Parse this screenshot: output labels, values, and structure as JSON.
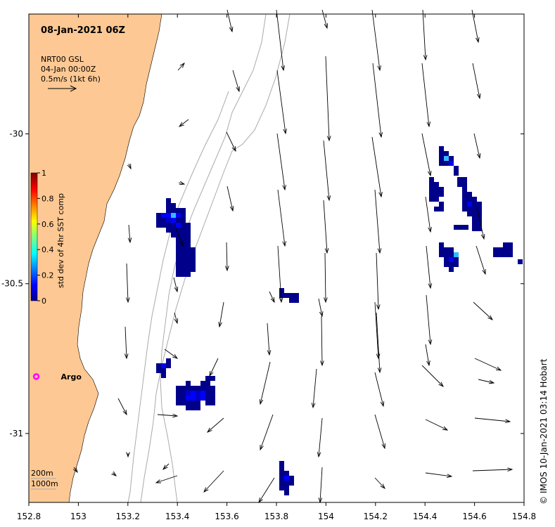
{
  "title": "08-Jan-2021 06Z",
  "legend": {
    "line1": "NRT00 GSL",
    "line2": "04-Jan 00:00Z",
    "line3": "0.5m/s (1kt 6h)"
  },
  "colorbar": {
    "label": "std dev of 4hr SST comp",
    "ticks": [
      "0",
      "0.2",
      "0.4",
      "0.6",
      "0.8",
      "1"
    ],
    "range": [
      0,
      1
    ]
  },
  "argo": {
    "label": "Argo",
    "lon": 152.83,
    "lat": -30.81,
    "color": "#ff00ff"
  },
  "credit": "© IMOS 10-Jan-2021 03:14 Hobart",
  "contours": {
    "label1": "200m",
    "label2": "1000m"
  },
  "axes": {
    "lon_range": [
      152.8,
      154.8
    ],
    "lat_range": [
      -31.23,
      -29.6
    ],
    "x_ticks": [
      "152.8",
      "153",
      "153.2",
      "153.4",
      "153.6",
      "153.8",
      "154",
      "154.2",
      "154.4",
      "154.6",
      "154.8"
    ],
    "y_ticks": [
      "-30",
      "-30.5",
      "-31"
    ]
  },
  "colors": {
    "land": "#fdc893",
    "contour": "#aaaaaa"
  }
}
